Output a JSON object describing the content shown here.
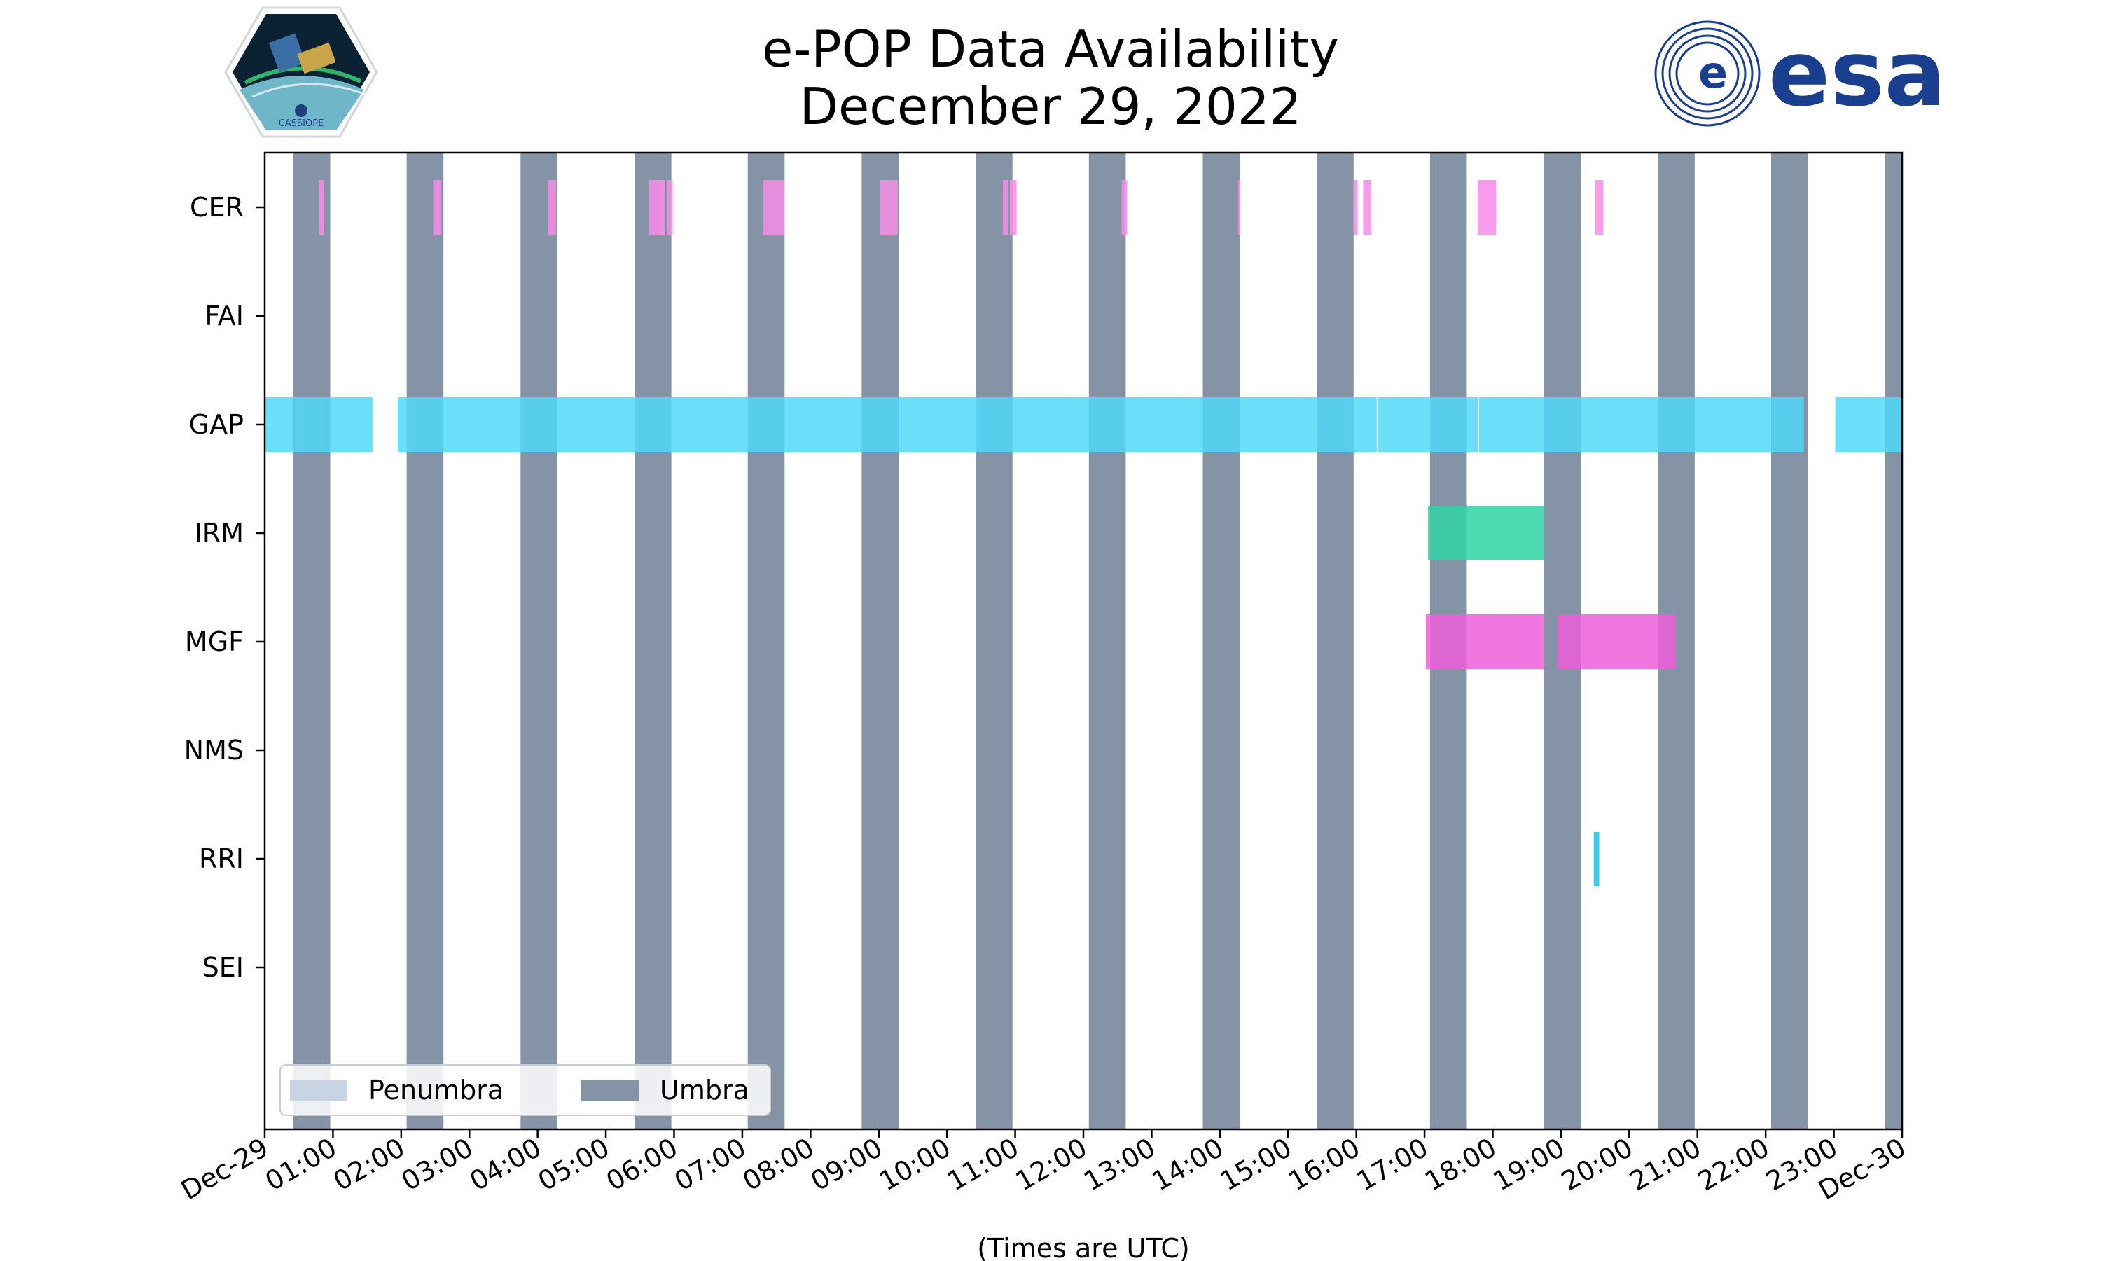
{
  "header": {
    "title_line1": "e-POP Data Availability",
    "title_line2": "December 29, 2022",
    "left_logo_text": "CASSIOPE",
    "right_logo_text": "esa"
  },
  "chart_data": {
    "type": "timeline",
    "title": "e-POP Data Availability\nDecember 29, 2022",
    "xlabel": "(Times are UTC)",
    "ylabel": "",
    "x_range_hours": [
      0,
      24
    ],
    "x_tick_labels": [
      "Dec-29",
      "01:00",
      "02:00",
      "03:00",
      "04:00",
      "05:00",
      "06:00",
      "07:00",
      "08:00",
      "09:00",
      "10:00",
      "11:00",
      "12:00",
      "13:00",
      "14:00",
      "15:00",
      "16:00",
      "17:00",
      "18:00",
      "19:00",
      "20:00",
      "21:00",
      "22:00",
      "23:00",
      "Dec-30"
    ],
    "instruments": [
      "CER",
      "FAI",
      "GAP",
      "IRM",
      "MGF",
      "NMS",
      "RRI",
      "SEI"
    ],
    "grid": false,
    "legend": {
      "placement": "lower-left",
      "entries": [
        {
          "label": "Penumbra",
          "color": "#c8d4e3"
        },
        {
          "label": "Umbra",
          "color": "#8494a6"
        }
      ]
    },
    "umbra_hours": [
      [
        0.42,
        0.96
      ],
      [
        2.08,
        2.62
      ],
      [
        3.75,
        4.29
      ],
      [
        5.42,
        5.96
      ],
      [
        7.08,
        7.62
      ],
      [
        8.75,
        9.29
      ],
      [
        10.42,
        10.96
      ],
      [
        12.08,
        12.62
      ],
      [
        13.75,
        14.29
      ],
      [
        15.42,
        15.96
      ],
      [
        17.08,
        17.62
      ],
      [
        18.75,
        19.29
      ],
      [
        20.42,
        20.96
      ],
      [
        22.08,
        22.62
      ],
      [
        23.75,
        24.0
      ]
    ],
    "series": [
      {
        "name": "CER",
        "color": "#f78ce8",
        "intervals": [
          [
            0.8,
            0.87
          ],
          [
            2.47,
            2.59
          ],
          [
            4.15,
            4.27
          ],
          [
            5.63,
            5.87
          ],
          [
            5.9,
            5.98
          ],
          [
            7.3,
            7.62
          ],
          [
            9.02,
            9.28
          ],
          [
            10.82,
            10.89
          ],
          [
            10.92,
            11.02
          ],
          [
            12.56,
            12.64
          ],
          [
            14.27,
            14.3
          ],
          [
            15.97,
            16.02
          ],
          [
            16.1,
            16.22
          ],
          [
            17.78,
            18.05
          ],
          [
            19.5,
            19.62
          ]
        ]
      },
      {
        "name": "FAI",
        "color": "#f78ce8",
        "intervals": []
      },
      {
        "name": "GAP",
        "color": "#4fd9f8",
        "intervals": [
          [
            0.0,
            1.58
          ],
          [
            1.95,
            16.3
          ],
          [
            16.32,
            17.78
          ],
          [
            17.8,
            22.56
          ],
          [
            23.02,
            24.0
          ]
        ]
      },
      {
        "name": "IRM",
        "color": "#2ed3a3",
        "intervals": [
          [
            17.05,
            18.75
          ]
        ]
      },
      {
        "name": "MGF",
        "color": "#ec5ed9",
        "intervals": [
          [
            17.02,
            18.75
          ],
          [
            18.95,
            20.68
          ]
        ]
      },
      {
        "name": "NMS",
        "color": "#f78ce8",
        "intervals": []
      },
      {
        "name": "RRI",
        "color": "#18c1e6",
        "intervals": [
          [
            19.48,
            19.56
          ]
        ]
      },
      {
        "name": "SEI",
        "color": "#f78ce8",
        "intervals": []
      }
    ]
  }
}
